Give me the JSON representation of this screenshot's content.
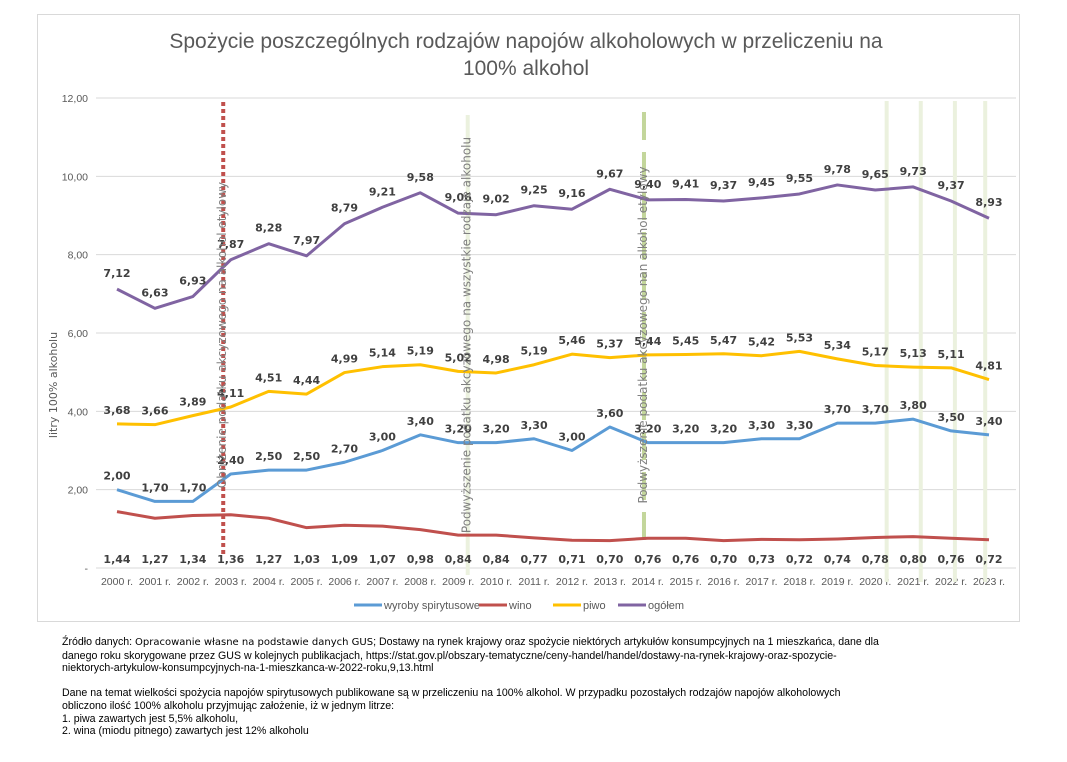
{
  "chart_data": {
    "type": "line",
    "title": "Spożycie poszczególnych rodzajów napojów alkoholowych w przeliczeniu na 100% alkohol",
    "title_lines": [
      "Spożycie poszczególnych rodzajów napojów alkoholowych w przeliczeniu na",
      "100% alkohol"
    ],
    "xlabel": "",
    "ylabel": "litry 100% alkoholu",
    "ylim": [
      0,
      12
    ],
    "yticks": [
      0,
      2,
      4,
      6,
      8,
      10,
      12
    ],
    "ytick_labels": [
      "-",
      "2,00",
      "4,00",
      "6,00",
      "8,00",
      "10,00",
      "12,00"
    ],
    "grid": true,
    "legend_position": "bottom",
    "categories": [
      "2000 r.",
      "2001 r.",
      "2002 r.",
      "2003 r.",
      "2004 r.",
      "2005 r.",
      "2006 r.",
      "2007 r.",
      "2008 r.",
      "2009 r.",
      "2010 r.",
      "2011 r.",
      "2012 r.",
      "2013 r.",
      "2014 r.",
      "2015 r.",
      "2016 r.",
      "2017 r.",
      "2018 r.",
      "2019 r.",
      "2020 r.",
      "2021 r.",
      "2022 r.",
      "2023 r."
    ],
    "series": [
      {
        "name": "wyroby spirytusowe",
        "color": "#5b9bd5",
        "values": [
          2.0,
          1.7,
          1.7,
          2.4,
          2.5,
          2.5,
          2.7,
          3.0,
          3.4,
          3.2,
          3.2,
          3.3,
          3.0,
          3.6,
          3.2,
          3.2,
          3.2,
          3.3,
          3.3,
          3.7,
          3.7,
          3.8,
          3.5,
          3.4
        ],
        "labels": [
          "2,00",
          "1,70",
          "1,70",
          "2,40",
          "2,50",
          "2,50",
          "2,70",
          "3,00",
          "3,40",
          "3,20",
          "3,20",
          "3,30",
          "3,00",
          "3,60",
          "3,20",
          "3,20",
          "3,20",
          "3,30",
          "3,30",
          "3,70",
          "3,70",
          "3,80",
          "3,50",
          "3,40"
        ]
      },
      {
        "name": "wino",
        "color": "#c0504d",
        "values": [
          1.44,
          1.27,
          1.34,
          1.36,
          1.27,
          1.03,
          1.09,
          1.07,
          0.98,
          0.84,
          0.84,
          0.77,
          0.71,
          0.7,
          0.76,
          0.76,
          0.7,
          0.73,
          0.72,
          0.74,
          0.78,
          0.8,
          0.76,
          0.72
        ],
        "labels": [
          "1,44",
          "1,27",
          "1,34",
          "1,36",
          "1,27",
          "1,03",
          "1,09",
          "1,07",
          "0,98",
          "0,84",
          "0,84",
          "0,77",
          "0,71",
          "0,70",
          "0,76",
          "0,76",
          "0,70",
          "0,73",
          "0,72",
          "0,74",
          "0,78",
          "0,80",
          "0,76",
          "0,72"
        ]
      },
      {
        "name": "piwo",
        "color": "#ffc000",
        "values": [
          3.68,
          3.66,
          3.89,
          4.11,
          4.51,
          4.44,
          4.99,
          5.14,
          5.19,
          5.02,
          4.98,
          5.19,
          5.46,
          5.37,
          5.44,
          5.45,
          5.47,
          5.42,
          5.53,
          5.34,
          5.17,
          5.13,
          5.11,
          4.81
        ],
        "labels": [
          "3,68",
          "3,66",
          "3,89",
          "4,11",
          "4,51",
          "4,44",
          "4,99",
          "5,14",
          "5,19",
          "5,02",
          "4,98",
          "5,19",
          "5,46",
          "5,37",
          "5,44",
          "5,45",
          "5,47",
          "5,42",
          "5,53",
          "5,34",
          "5,17",
          "5,13",
          "5,11",
          "4,81"
        ]
      },
      {
        "name": "ogółem",
        "color": "#8064a2",
        "values": [
          7.12,
          6.63,
          6.93,
          7.87,
          8.28,
          7.97,
          8.79,
          9.21,
          9.58,
          9.06,
          9.02,
          9.25,
          9.16,
          9.67,
          9.4,
          9.41,
          9.37,
          9.45,
          9.55,
          9.78,
          9.65,
          9.73,
          9.37,
          8.93
        ],
        "labels": [
          "7,12",
          "6,63",
          "6,93",
          "7,87",
          "8,28",
          "7,97",
          "8,79",
          "9,21",
          "9,58",
          "9,06",
          "9,02",
          "9,25",
          "9,16",
          "9,67",
          "9,40",
          "9,41",
          "9,37",
          "9,45",
          "9,55",
          "9,78",
          "9,65",
          "9,73",
          "9,37",
          "8,93"
        ]
      }
    ],
    "annotations": [
      {
        "text": "Obniżenie podatku akcyzowego na alkohol etylowy",
        "at_category": "2002 r.",
        "style": "dotted",
        "color": "#c0504d"
      },
      {
        "text": "Podwyższenie podatku akcyzowego na wszystkie rodzaje alkoholu",
        "at_category": "2009 r.",
        "style": "solid",
        "color": "#ebf1de"
      },
      {
        "text": "Podwyższenie podatku akcyzowego nan alkohol etylowy",
        "at_category": "2014 r.",
        "style": "dashed",
        "color": "#c3d69b"
      },
      {
        "text": "",
        "at_category": "2020 r.",
        "style": "solid",
        "color": "#ebf1de"
      },
      {
        "text": "",
        "at_category": "2021 r.",
        "style": "solid",
        "color": "#ebf1de"
      },
      {
        "text": "",
        "at_category": "2022 r.",
        "style": "solid",
        "color": "#ebf1de"
      },
      {
        "text": "",
        "at_category": "2023 r.",
        "style": "solid",
        "color": "#ebf1de"
      }
    ]
  },
  "source": {
    "label": "Źródło danych:",
    "highlight": "Opracowanie własne na podstawie danych GUS",
    "lines": [
      "; Dostawy na rynek krajowy oraz spożycie niektórych artykułów konsumpcyjnych na 1 mieszkańca, dane dla",
      "danego roku skorygowane przez GUS w kolejnych publikacjach, https://stat.gov.pl/obszary-tematyczne/ceny-handel/handel/dostawy-na-rynek-krajowy-oraz-spozycie-",
      "niektorych-artykulow-konsumpcyjnych-na-1-mieszkanca-w-2022-roku,9,13.html"
    ],
    "note_lines": [
      "Dane na temat wielkości spożycia napojów spirytusowych publikowane są w przeliczeniu na 100% alkohol. W przypadku pozostałych rodzajów napojów alkoholowych",
      "obliczono ilość 100% alkoholu przyjmując założenie, iż w jednym litrze:",
      "1. piwa zawartych jest 5,5% alkoholu,",
      "2. wina (miodu pitnego) zawartych jest 12% alkoholu"
    ]
  }
}
